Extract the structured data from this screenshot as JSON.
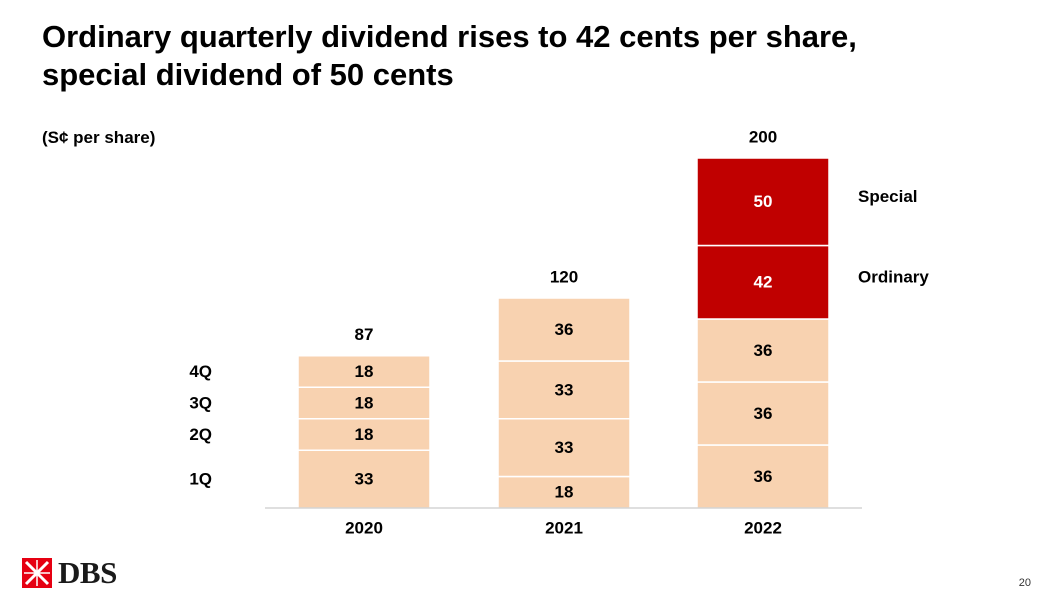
{
  "slide": {
    "title_line1": "Ordinary quarterly dividend rises to 42 cents per share,",
    "title_line2": "special dividend of 50 cents",
    "unit_label": "(S¢ per share)",
    "brand": "DBS",
    "page_number": "20"
  },
  "chart_data": {
    "type": "bar",
    "stacked": true,
    "title": "Ordinary quarterly dividend rises to 42 cents per share, special dividend of 50 cents",
    "ylabel": "(S¢ per share)",
    "xlabel": "",
    "categories": [
      "2020",
      "2021",
      "2022"
    ],
    "row_labels": [
      "1Q",
      "2Q",
      "3Q",
      "4Q"
    ],
    "stacks": [
      {
        "category": "2020",
        "segments": [
          33,
          18,
          18,
          18
        ],
        "total": 87
      },
      {
        "category": "2021",
        "segments": [
          18,
          33,
          33,
          36
        ],
        "total": 120
      },
      {
        "category": "2022",
        "segments": [
          36,
          36,
          36,
          42,
          50
        ],
        "total": 200
      }
    ],
    "callouts": [
      {
        "label": "Ordinary",
        "category": "2022",
        "segment_index": 3
      },
      {
        "label": "Special",
        "category": "2022",
        "segment_index": 4
      }
    ],
    "colors": {
      "regular": "#f8d2b0",
      "highlight": "#c00000",
      "highlight_text": "#ffffff",
      "axis": "#bfbfbf"
    },
    "ylim": [
      0,
      200
    ],
    "grid": false,
    "legend": "none"
  }
}
